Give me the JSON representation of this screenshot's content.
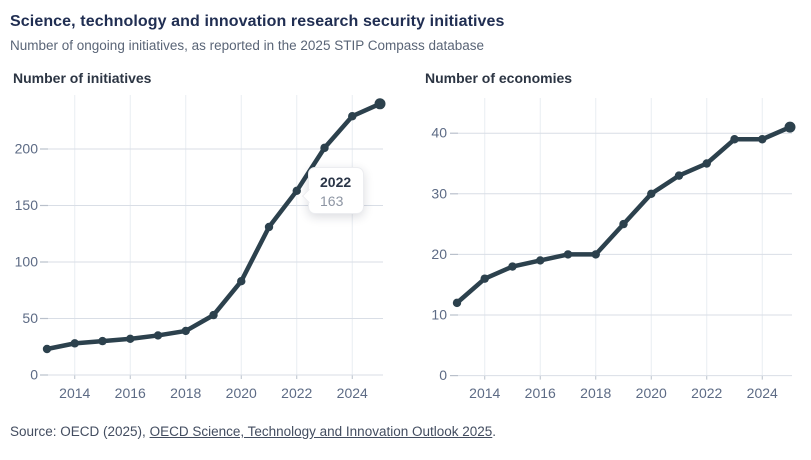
{
  "header": {
    "title": "Science, technology and innovation research security initiatives",
    "subtitle": "Number of ongoing initiatives, as reported in the 2025 STIP Compass database"
  },
  "tooltip": {
    "year": "2022",
    "value": "163"
  },
  "footer": {
    "prefix": "Source: OECD (2025), ",
    "link": "OECD Science, Technology and Innovation Outlook 2025",
    "suffix": "."
  },
  "colors": {
    "line": "#2c414d",
    "marker": "#2c414d",
    "grid_horizontal": "#d9dee6",
    "grid_vertical": "#e9edf2",
    "tick": "#b9c0cb",
    "axis_label": "#5d6b85",
    "title": "#202e52",
    "subtitle": "#5a6577",
    "heading": "#2c3543"
  },
  "chart_data": [
    {
      "type": "line",
      "title": "Number of initiatives",
      "xlabel": "",
      "ylabel": "",
      "x": [
        2013,
        2014,
        2015,
        2016,
        2017,
        2018,
        2019,
        2020,
        2021,
        2022,
        2023,
        2024,
        2025
      ],
      "values": [
        23,
        28,
        30,
        32,
        35,
        39,
        53,
        83,
        131,
        163,
        201,
        229,
        240
      ],
      "xticks": [
        2014,
        2016,
        2018,
        2020,
        2022,
        2024
      ],
      "yticks": [
        0,
        50,
        100,
        150,
        200
      ],
      "ylim": [
        0,
        248
      ],
      "grid": true,
      "legend": "none",
      "annotation": {
        "year": 2022,
        "value": 163,
        "note": "tooltip shown"
      }
    },
    {
      "type": "line",
      "title": "Number of economies",
      "xlabel": "",
      "ylabel": "",
      "x": [
        2013,
        2014,
        2015,
        2016,
        2017,
        2018,
        2019,
        2020,
        2021,
        2022,
        2023,
        2024,
        2025
      ],
      "values": [
        12,
        16,
        18,
        19,
        20,
        20,
        25,
        30,
        33,
        35,
        39,
        39,
        41
      ],
      "xticks": [
        2014,
        2016,
        2018,
        2020,
        2022,
        2024
      ],
      "yticks": [
        0,
        10,
        20,
        30,
        40
      ],
      "ylim": [
        0,
        46
      ],
      "grid": true,
      "legend": "none"
    }
  ]
}
